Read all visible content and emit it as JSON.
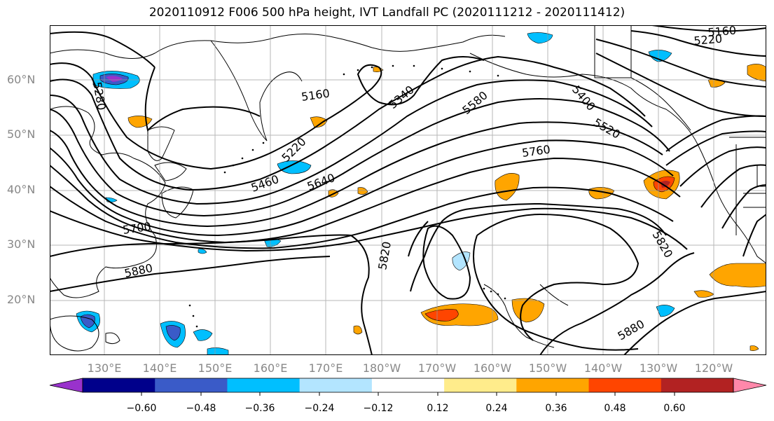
{
  "title": "2020110912 F006 500 hPa height, IVT Landfall PC (2020111212 - 2020111412)",
  "map": {
    "lat_labels": [
      "60°N",
      "50°N",
      "40°N",
      "30°N",
      "20°N"
    ],
    "lon_labels": [
      "130°E",
      "140°E",
      "150°E",
      "160°E",
      "170°E",
      "180°W",
      "170°W",
      "160°W",
      "150°W",
      "140°W",
      "130°W",
      "120°W"
    ],
    "contour_labels": [
      "5160",
      "5220",
      "5160",
      "5220",
      "5280",
      "5340",
      "5400",
      "5460",
      "5520",
      "5580",
      "5640",
      "5700",
      "5760",
      "5820",
      "5820",
      "5880",
      "5880"
    ]
  },
  "colorbar": {
    "tick_labels": [
      "−0.60",
      "−0.48",
      "−0.36",
      "−0.24",
      "−0.12",
      "0.12",
      "0.24",
      "0.36",
      "0.48",
      "0.60"
    ],
    "colors": [
      "#9932cc",
      "#00008b",
      "#3a5bc8",
      "#00bfff",
      "#b3e5ff",
      "#ffffff",
      "#ffec8b",
      "#ffa500",
      "#ff4500",
      "#b22222",
      "#ff88aa"
    ]
  }
}
